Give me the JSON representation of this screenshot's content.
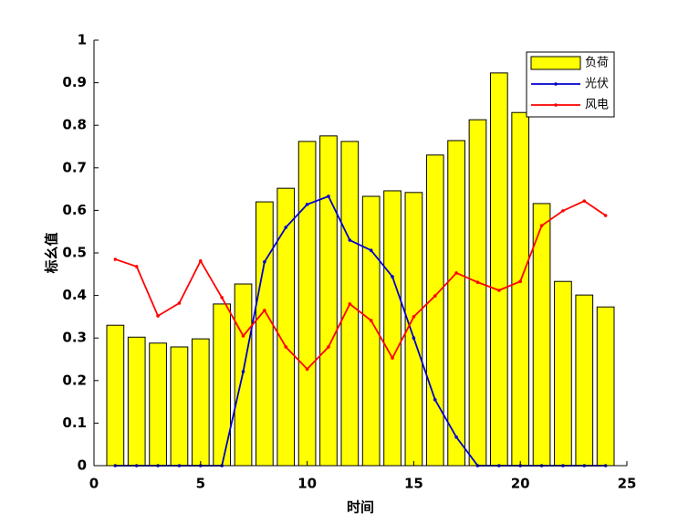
{
  "chart_data": {
    "type": "combo",
    "x_label": "时间",
    "y_label": "标幺值",
    "x": [
      1,
      2,
      3,
      4,
      5,
      6,
      7,
      8,
      9,
      10,
      11,
      12,
      13,
      14,
      15,
      16,
      17,
      18,
      19,
      20,
      21,
      22,
      23,
      24
    ],
    "series": [
      {
        "name": "负荷",
        "type": "bar",
        "color": "#ffff00",
        "values": [
          0.33,
          0.302,
          0.288,
          0.279,
          0.298,
          0.38,
          0.427,
          0.62,
          0.652,
          0.762,
          0.775,
          0.762,
          0.633,
          0.646,
          0.642,
          0.73,
          0.764,
          0.813,
          0.923,
          0.83,
          0.616,
          0.433,
          0.401,
          0.373
        ]
      },
      {
        "name": "光伏",
        "type": "line",
        "color": "#0000cc",
        "values": [
          0,
          0,
          0,
          0,
          0,
          0,
          0.221,
          0.479,
          0.56,
          0.614,
          0.633,
          0.53,
          0.506,
          0.444,
          0.3,
          0.155,
          0.067,
          0,
          0,
          0,
          0,
          0,
          0,
          0
        ]
      },
      {
        "name": "风电",
        "type": "line",
        "color": "#ff0000",
        "values": [
          0.485,
          0.468,
          0.352,
          0.382,
          0.481,
          0.395,
          0.305,
          0.365,
          0.279,
          0.227,
          0.279,
          0.38,
          0.341,
          0.253,
          0.35,
          0.399,
          0.453,
          0.431,
          0.412,
          0.433,
          0.564,
          0.599,
          0.622,
          0.588
        ]
      }
    ],
    "xlim": [
      0,
      25
    ],
    "xticks": [
      0,
      5,
      10,
      15,
      20,
      25
    ],
    "ylim": [
      0,
      1
    ],
    "yticks": [
      0,
      0.1,
      0.2,
      0.3,
      0.4,
      0.5,
      0.6,
      0.7,
      0.8,
      0.9,
      1
    ],
    "legend": "upper right"
  }
}
